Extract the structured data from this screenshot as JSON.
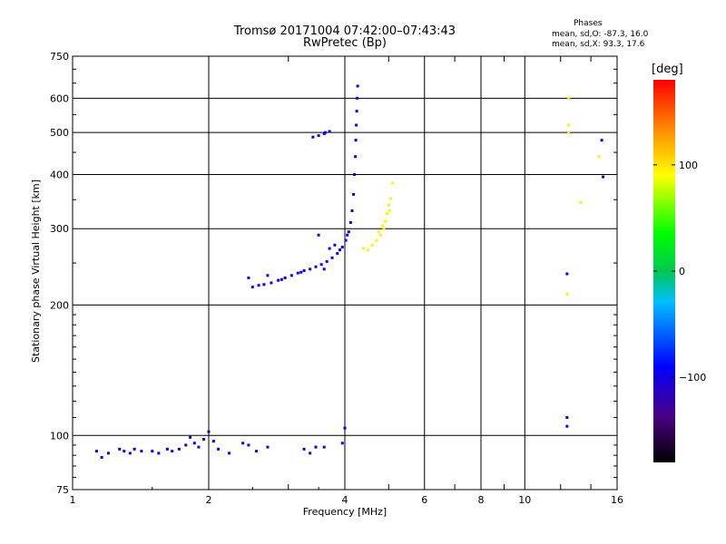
{
  "chart_data": {
    "type": "scatter",
    "title": "Tromsø 20171004 07:42:00–07:43:43",
    "subtitle": "RwPretec (Bp)",
    "xlabel": "Frequency [MHz]",
    "ylabel": "Stationary phase Virtual Height [km]",
    "x_scale": "log",
    "y_scale": "log",
    "xlim": [
      1,
      16
    ],
    "ylim": [
      75,
      750
    ],
    "grid": true,
    "x_ticks": [
      1,
      2,
      4,
      6,
      8,
      10,
      16
    ],
    "x_tick_labels": [
      "1",
      "2",
      "4",
      "6",
      "8",
      "10",
      "16"
    ],
    "y_ticks": [
      75,
      100,
      200,
      300,
      400,
      500,
      600,
      750
    ],
    "y_tick_labels": [
      "75",
      "100",
      "200",
      "300",
      "400",
      "500",
      "600",
      "750"
    ],
    "legend": {
      "heading": "Phases",
      "line_o": "mean, sd,O: -87.3, 16.0",
      "line_x": "mean, sd,X:  93.3, 17.6"
    },
    "colorbar": {
      "label": "[deg]",
      "range": [
        -180,
        180
      ],
      "ticks": [
        100,
        0,
        -100
      ],
      "tick_labels": [
        "100",
        "0",
        "−100"
      ]
    },
    "series": [
      {
        "mode": "O",
        "phase_deg": -100,
        "points": [
          [
            1.13,
            92
          ],
          [
            1.16,
            89
          ],
          [
            1.2,
            91
          ],
          [
            1.27,
            93
          ],
          [
            1.3,
            92
          ],
          [
            1.34,
            91
          ],
          [
            1.37,
            93
          ],
          [
            1.42,
            92
          ],
          [
            1.5,
            92
          ],
          [
            1.55,
            91
          ],
          [
            1.62,
            93
          ],
          [
            1.66,
            92
          ],
          [
            1.72,
            93
          ],
          [
            1.78,
            95
          ],
          [
            1.82,
            99
          ],
          [
            1.86,
            96
          ],
          [
            1.9,
            94
          ],
          [
            1.95,
            98
          ],
          [
            2.0,
            102
          ],
          [
            2.05,
            97
          ],
          [
            2.1,
            93
          ],
          [
            2.22,
            91
          ],
          [
            2.38,
            96
          ],
          [
            2.45,
            95
          ],
          [
            2.55,
            92
          ],
          [
            2.7,
            94
          ],
          [
            3.25,
            93
          ],
          [
            3.35,
            91
          ],
          [
            3.45,
            94
          ],
          [
            3.6,
            94
          ],
          [
            3.95,
            96
          ],
          [
            4.0,
            104
          ],
          [
            2.5,
            220
          ],
          [
            2.58,
            222
          ],
          [
            2.65,
            223
          ],
          [
            2.75,
            225
          ],
          [
            2.85,
            228
          ],
          [
            2.95,
            231
          ],
          [
            3.05,
            234
          ],
          [
            3.15,
            237
          ],
          [
            3.25,
            240
          ],
          [
            3.35,
            242
          ],
          [
            3.45,
            245
          ],
          [
            3.55,
            248
          ],
          [
            3.65,
            252
          ],
          [
            3.75,
            257
          ],
          [
            3.85,
            263
          ],
          [
            3.95,
            272
          ],
          [
            4.02,
            282
          ],
          [
            4.08,
            295
          ],
          [
            4.12,
            310
          ],
          [
            4.15,
            330
          ],
          [
            4.18,
            360
          ],
          [
            4.2,
            400
          ],
          [
            4.22,
            440
          ],
          [
            4.23,
            480
          ],
          [
            4.24,
            520
          ],
          [
            4.25,
            560
          ],
          [
            4.26,
            600
          ],
          [
            4.27,
            640
          ],
          [
            2.45,
            231
          ],
          [
            2.7,
            234
          ],
          [
            2.9,
            229
          ],
          [
            3.2,
            238
          ],
          [
            3.5,
            290
          ],
          [
            3.7,
            270
          ],
          [
            3.6,
            242
          ],
          [
            3.8,
            275
          ],
          [
            3.9,
            268
          ],
          [
            4.05,
            290
          ],
          [
            3.4,
            488
          ],
          [
            3.5,
            492
          ],
          [
            3.6,
            497
          ],
          [
            3.7,
            503
          ],
          [
            3.62,
            500
          ],
          [
            12.4,
            110
          ],
          [
            12.4,
            105
          ],
          [
            12.4,
            236
          ],
          [
            14.8,
            480
          ],
          [
            14.9,
            395
          ]
        ]
      },
      {
        "mode": "X",
        "phase_deg": 95,
        "points": [
          [
            4.4,
            270
          ],
          [
            4.5,
            268
          ],
          [
            4.6,
            275
          ],
          [
            4.7,
            282
          ],
          [
            4.8,
            290
          ],
          [
            4.88,
            300
          ],
          [
            4.92,
            312
          ],
          [
            4.96,
            325
          ],
          [
            5.0,
            340
          ],
          [
            5.05,
            352
          ],
          [
            5.1,
            382
          ],
          [
            5.02,
            330
          ],
          [
            4.75,
            295
          ],
          [
            4.85,
            305
          ],
          [
            12.4,
            212
          ],
          [
            12.5,
            500
          ],
          [
            12.5,
            520
          ],
          [
            13.3,
            345
          ],
          [
            14.6,
            440
          ],
          [
            12.5,
            600
          ]
        ]
      }
    ]
  }
}
